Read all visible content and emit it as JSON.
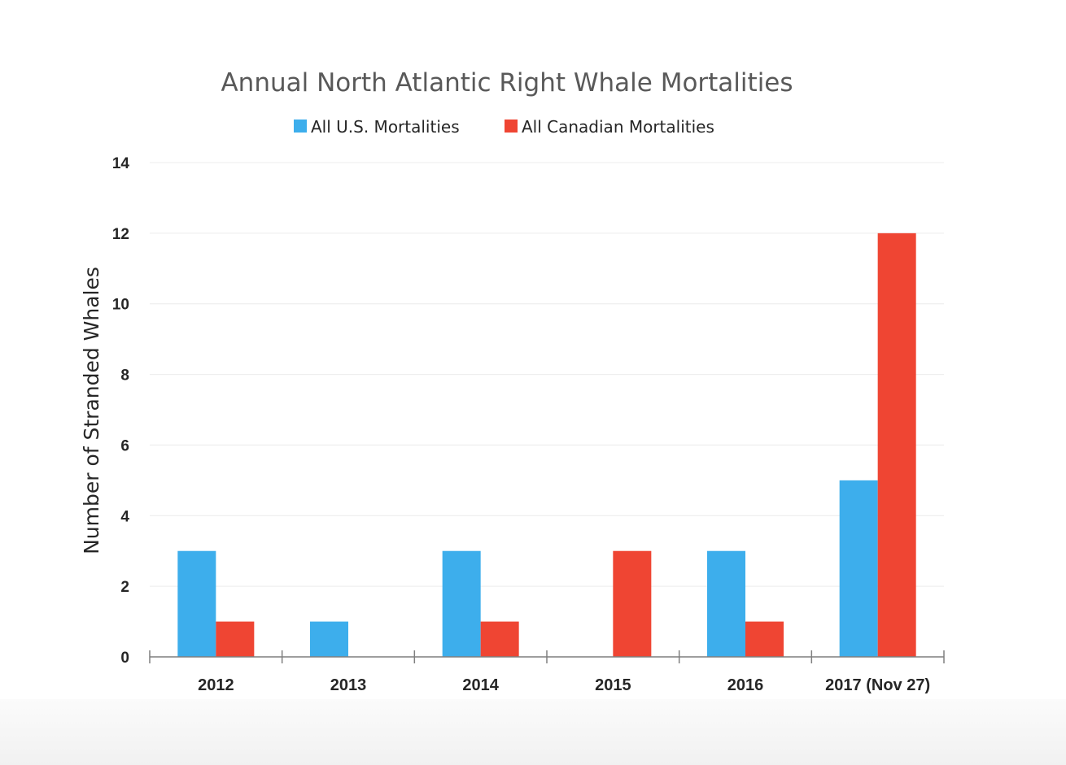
{
  "chart_data": {
    "type": "bar",
    "title": "Annual North Atlantic Right Whale Mortalities",
    "xlabel": "",
    "ylabel": "Number of  Stranded Whales",
    "categories": [
      "2012",
      "2013",
      "2014",
      "2015",
      "2016",
      "2017 (Nov 27)"
    ],
    "series": [
      {
        "name": "All U.S. Mortalities",
        "color": "#3daeec",
        "values": [
          3,
          1,
          3,
          0,
          3,
          5
        ]
      },
      {
        "name": "All Canadian Mortalities",
        "color": "#ef4533",
        "values": [
          1,
          0,
          1,
          3,
          1,
          12
        ]
      }
    ],
    "ylim": [
      0,
      14
    ],
    "yticks": [
      0,
      2,
      4,
      6,
      8,
      10,
      12,
      14
    ],
    "grid": true,
    "legend_position": "top-center"
  }
}
